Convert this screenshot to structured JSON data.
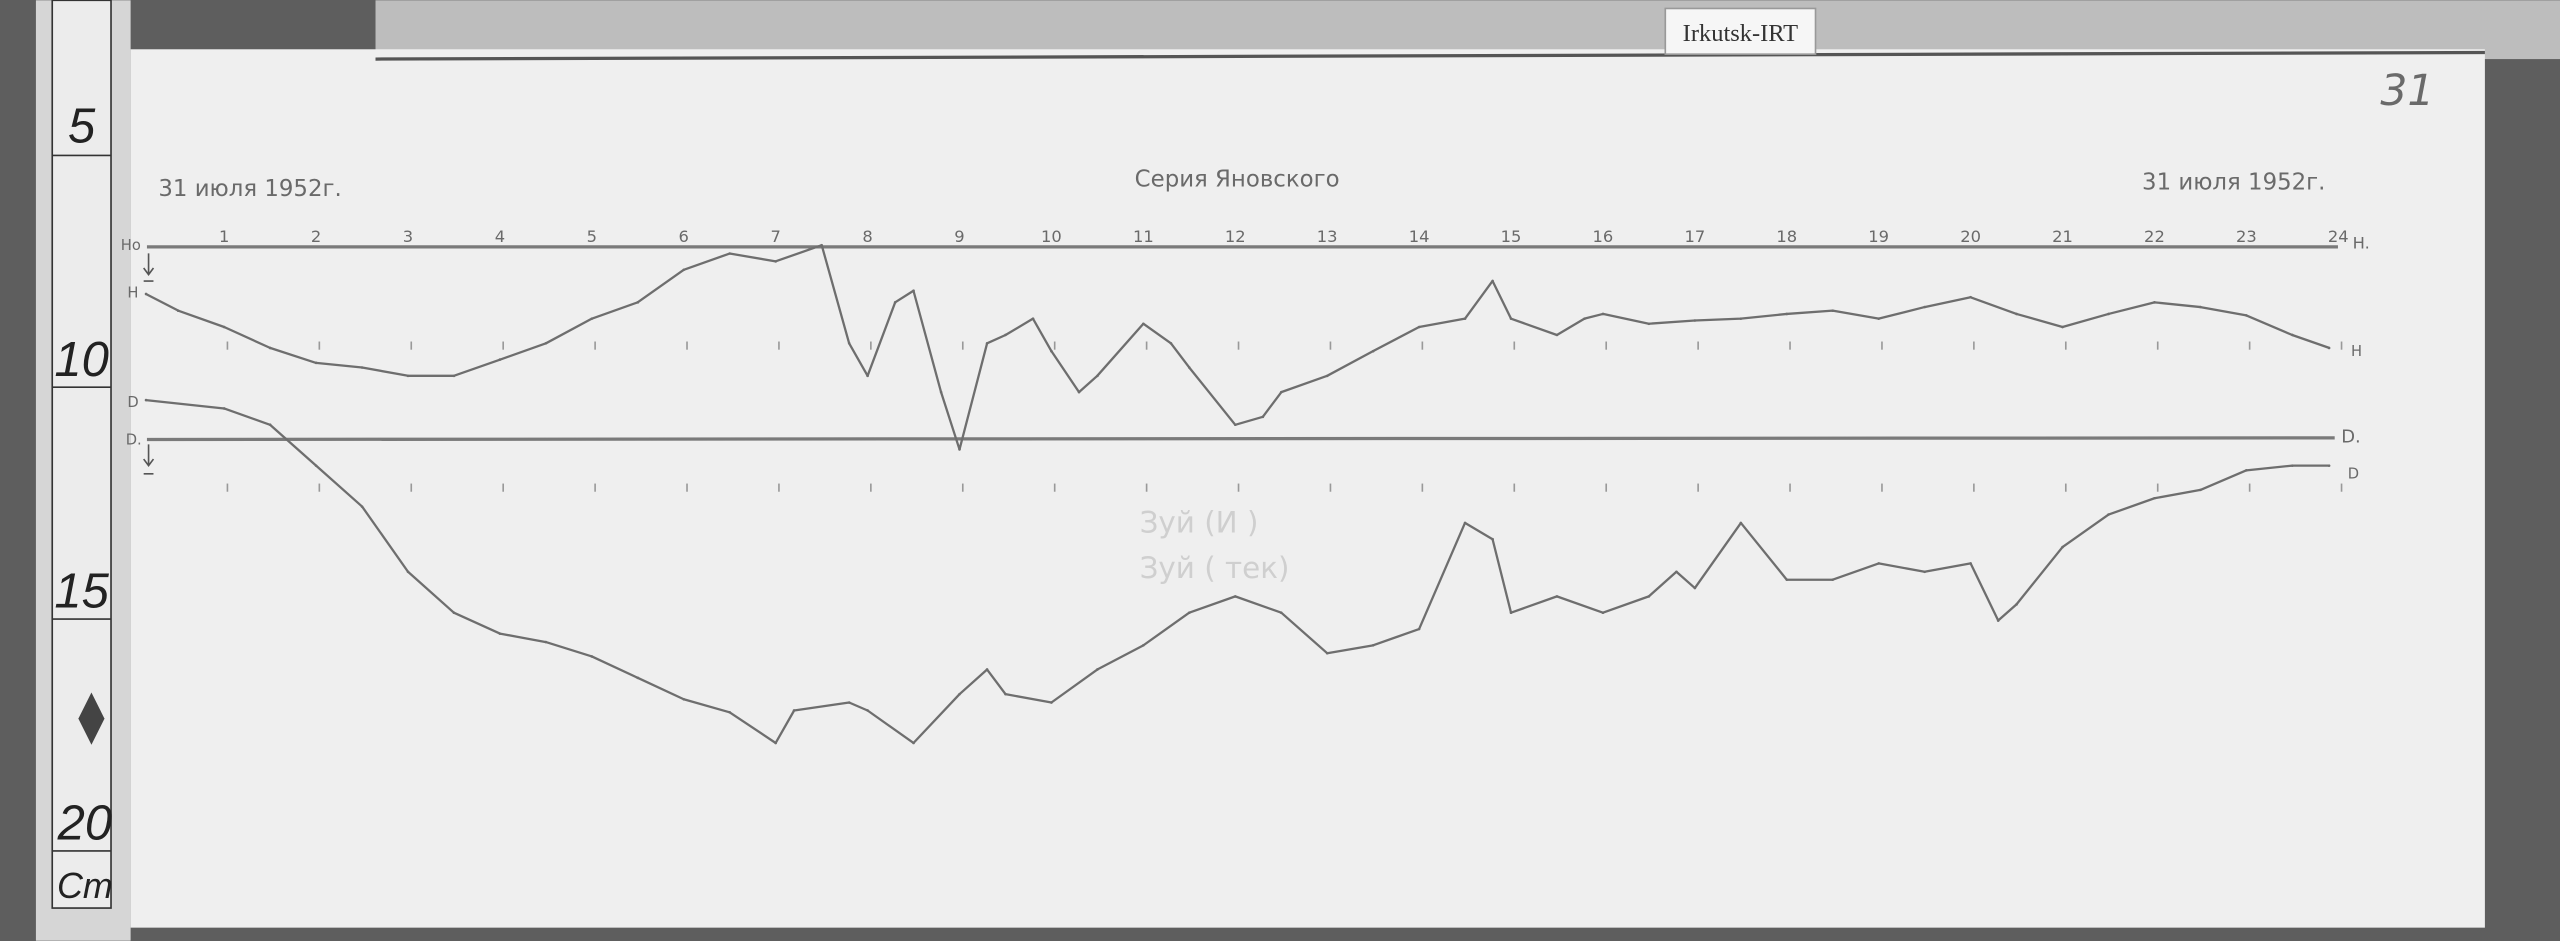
{
  "label_tag": "Irkutsk-IRT",
  "sheet_number": "31",
  "header": {
    "date_left": "31 июля 1952г.",
    "title": "Серия Яновского",
    "date_right": "31 июля 1952г."
  },
  "ruler": {
    "marks": [
      "5",
      "10",
      "15",
      "20"
    ],
    "unit": "Cm"
  },
  "stamp": {
    "line1": "Зуй (И      )",
    "line2": "Зуй (    тек)"
  },
  "trace_labels": {
    "h_baseline_left": "Hо",
    "h_left": "H",
    "d_left": "D",
    "d_baseline_left": "D.",
    "h_baseline_right": "H.",
    "d_baseline_right": "D.",
    "h_curve_right": "H",
    "d_curve_right": "D"
  },
  "colors": {
    "background": "#5e5e5e",
    "paper": "#efefef",
    "trace": "#6e6e6e"
  },
  "chart_data": {
    "type": "line",
    "title": "Серия Яновского",
    "xlabel": "",
    "ylabel": "Cm",
    "x_ticks": [
      "1",
      "2",
      "3",
      "4",
      "5",
      "6",
      "7",
      "8",
      "9",
      "10",
      "11",
      "12",
      "13",
      "14",
      "15",
      "16",
      "17",
      "18",
      "19",
      "20",
      "21",
      "22",
      "23",
      "24"
    ],
    "xlim": [
      0,
      24
    ],
    "ylim": [
      5,
      20
    ],
    "grid": false,
    "baselines": [
      {
        "name": "H.",
        "y": 7.63
      },
      {
        "name": "D.",
        "y": 11.77
      }
    ],
    "series": [
      {
        "name": "H",
        "x": [
          0.15,
          0.5,
          1,
          1.5,
          2,
          2.5,
          3,
          3.5,
          4,
          4.5,
          5,
          5.5,
          6,
          6.5,
          7,
          7.5,
          7.8,
          8,
          8.3,
          8.5,
          8.8,
          9,
          9.3,
          9.5,
          9.8,
          10,
          10.3,
          10.5,
          11,
          11.3,
          11.5,
          12,
          12.3,
          12.5,
          13,
          13.5,
          14,
          14.5,
          14.8,
          15,
          15.5,
          15.8,
          16,
          16.5,
          17,
          17.5,
          18,
          18.5,
          19,
          19.5,
          20,
          20.5,
          21,
          21.5,
          22,
          22.5,
          23,
          23.5,
          23.9
        ],
        "values": [
          8.68,
          9.04,
          9.39,
          9.84,
          10.16,
          10.26,
          10.44,
          10.44,
          10.09,
          9.74,
          9.21,
          8.86,
          8.16,
          7.81,
          7.98,
          7.63,
          9.74,
          10.44,
          8.86,
          8.61,
          10.79,
          12.02,
          9.74,
          9.56,
          9.21,
          9.91,
          10.79,
          10.44,
          9.32,
          9.74,
          10.26,
          11.49,
          11.32,
          10.79,
          10.44,
          9.91,
          9.39,
          9.21,
          8.4,
          9.21,
          9.56,
          9.21,
          9.11,
          9.32,
          9.25,
          9.21,
          9.11,
          9.04,
          9.21,
          8.96,
          8.75,
          9.11,
          9.39,
          9.11,
          8.86,
          8.96,
          9.14,
          9.56,
          9.84
        ]
      },
      {
        "name": "D",
        "x": [
          0.15,
          1,
          1.5,
          2,
          2.5,
          3,
          3.5,
          4,
          4.5,
          5,
          5.5,
          6,
          6.5,
          7,
          7.2,
          7.8,
          8,
          8.5,
          9,
          9.3,
          9.5,
          10,
          10.5,
          11,
          11.5,
          12,
          12.5,
          13,
          13.5,
          14,
          14.5,
          14.8,
          15,
          15.5,
          16,
          16.5,
          16.8,
          17,
          17.5,
          18,
          18.5,
          19,
          19.5,
          20,
          20.3,
          20.5,
          21,
          21.5,
          22,
          22.5,
          23,
          23.5,
          23.9
        ],
        "values": [
          10.96,
          11.14,
          11.49,
          12.37,
          13.25,
          14.65,
          15.53,
          15.98,
          16.16,
          16.47,
          16.93,
          17.39,
          17.67,
          18.33,
          17.63,
          17.46,
          17.63,
          18.33,
          17.28,
          16.75,
          17.28,
          17.46,
          16.75,
          16.23,
          15.53,
          15.18,
          15.53,
          16.4,
          16.23,
          15.88,
          13.6,
          13.95,
          15.53,
          15.18,
          15.53,
          15.18,
          14.65,
          15.0,
          13.6,
          14.82,
          14.82,
          14.47,
          14.65,
          14.47,
          15.7,
          15.35,
          14.12,
          13.42,
          13.07,
          12.89,
          12.47,
          12.37,
          12.37
        ]
      }
    ]
  }
}
